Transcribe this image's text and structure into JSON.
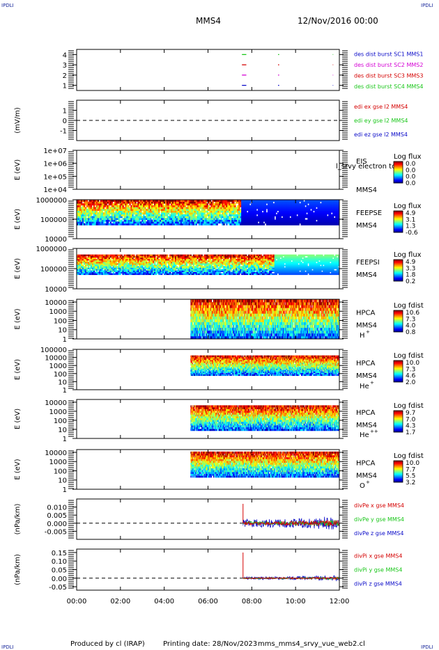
{
  "header": {
    "spacecraft": "MMS4",
    "date": "12/Nov/2016 00:00",
    "corner_label": "IPDLI"
  },
  "footer": {
    "produced_by": "Produced by cl (IRAP)",
    "printing_date": "Printing date: 28/Nov/2023",
    "script_name": "mms_mms4_srvy_vue_web2.cl"
  },
  "colors": {
    "blue": "#0a0ac8",
    "green": "#19c619",
    "red": "#d40000",
    "magenta": "#d400d4"
  },
  "chart_data": [
    {
      "type": "line",
      "id": "burst",
      "ylim": [
        0.5,
        4.5
      ],
      "yticks": [
        "1",
        "2",
        "3",
        "4"
      ],
      "ytick_values": [
        1,
        2,
        3,
        4
      ],
      "legend": [
        {
          "label": "des dist burst SC1 MMS1",
          "color": "blue"
        },
        {
          "label": "des dist burst SC2 MMS2",
          "color": "magenta"
        },
        {
          "label": "des dist burst SC3 MMS3",
          "color": "red"
        },
        {
          "label": "des dist burst SC4 MMS4",
          "color": "green"
        }
      ],
      "segments": [
        {
          "y": 4,
          "color": "green",
          "x": [
            [
              7.55,
              7.75
            ],
            [
              9.2,
              9.25
            ],
            [
              11.7,
              11.72
            ]
          ]
        },
        {
          "y": 3,
          "color": "red",
          "x": [
            [
              7.55,
              7.75
            ],
            [
              9.2,
              9.25
            ],
            [
              11.7,
              11.72
            ]
          ]
        },
        {
          "y": 2,
          "color": "magenta",
          "x": [
            [
              7.55,
              7.75
            ],
            [
              9.2,
              9.25
            ],
            [
              11.7,
              11.72
            ]
          ]
        },
        {
          "y": 1,
          "color": "blue",
          "x": [
            [
              7.55,
              7.75
            ],
            [
              9.2,
              9.25
            ],
            [
              11.7,
              11.72
            ]
          ]
        }
      ]
    },
    {
      "type": "line",
      "id": "edi",
      "ylabel": "(mV/m)",
      "ylim": [
        -2,
        2
      ],
      "yticks": [
        "-1",
        "0",
        "1"
      ],
      "ytick_values": [
        -1,
        0,
        1
      ],
      "zero_line": true,
      "legend": [
        {
          "label": "edi ex gse l2 MMS4",
          "color": "red"
        },
        {
          "label": "edi ey gse l2 MMS4",
          "color": "green"
        },
        {
          "label": "edi ez gse l2 MMS4",
          "color": "blue"
        }
      ]
    },
    {
      "type": "heatmap",
      "id": "eis",
      "ylabel": "E (eV)",
      "log": true,
      "ylim": [
        10000,
        10000000
      ],
      "yticks": [
        "1e+04",
        "1e+05",
        "1e+06",
        "1e+07"
      ],
      "ytick_values": [
        10000,
        100000,
        1000000,
        10000000
      ],
      "instrument": "EIS",
      "instrument_sub": "MMS4",
      "overlay_text": "l_srvy electron to",
      "colorbar_label": "Log flux",
      "colorbar_ticks": [
        "0.0",
        "0.0",
        "0.0",
        "0.0"
      ],
      "empty": true
    },
    {
      "type": "heatmap",
      "id": "feepse",
      "ylabel": "E (eV)",
      "log": true,
      "ylim": [
        10000,
        1000000
      ],
      "yticks": [
        "10000",
        "100000",
        "1000000"
      ],
      "ytick_values": [
        10000,
        100000,
        1000000
      ],
      "instrument": "FEEPSE",
      "instrument_sub": "MMS4",
      "colorbar_label": "Log flux",
      "colorbar_ticks": [
        "4.9",
        "3.1",
        "1.3",
        "-0.6"
      ],
      "data_start": 0.0,
      "data_bottom": 0.35,
      "data_top": 1.0
    },
    {
      "type": "heatmap",
      "id": "feepsi",
      "ylabel": "E (eV)",
      "log": true,
      "ylim": [
        10000,
        1000000
      ],
      "yticks": [
        "10000",
        "100000",
        "1000000"
      ],
      "ytick_values": [
        10000,
        100000,
        1000000
      ],
      "instrument": "FEEPSI",
      "instrument_sub": "MMS4",
      "colorbar_label": "Log flux",
      "colorbar_ticks": [
        "4.9",
        "3.3",
        "1.8",
        "0.2"
      ],
      "data_start": 0.0,
      "data_bottom": 0.35,
      "data_top": 0.85
    },
    {
      "type": "heatmap",
      "id": "hpca_h",
      "ylabel": "E (eV)",
      "log": true,
      "ylim": [
        1,
        20000
      ],
      "yticks": [
        "1",
        "10",
        "100",
        "1000",
        "10000"
      ],
      "ytick_values": [
        1,
        10,
        100,
        1000,
        10000
      ],
      "instrument": "HPCA",
      "instrument_sub": "MMS4",
      "species": "H",
      "charge": "+",
      "colorbar_label": "Log fdist",
      "colorbar_ticks": [
        "10.6",
        "7.3",
        "4.0",
        "0.8"
      ],
      "data_start": 5.2,
      "data_bottom": 0.0,
      "data_top": 1.0
    },
    {
      "type": "heatmap",
      "id": "hpca_he1",
      "ylabel": "E (eV)",
      "log": true,
      "ylim": [
        1,
        100000
      ],
      "yticks": [
        "1",
        "10",
        "100",
        "1000",
        "10000",
        "100000"
      ],
      "ytick_values": [
        1,
        10,
        100,
        1000,
        10000,
        100000
      ],
      "instrument": "HPCA",
      "instrument_sub": "MMS4",
      "species": "He",
      "charge": "+",
      "colorbar_label": "Log fdist",
      "colorbar_ticks": [
        "10.0",
        "7.3",
        "4.6",
        "2.0"
      ],
      "data_start": 5.2,
      "data_bottom": 0.35,
      "data_top": 0.85
    },
    {
      "type": "heatmap",
      "id": "hpca_he2",
      "ylabel": "E (eV)",
      "log": true,
      "ylim": [
        1,
        20000
      ],
      "yticks": [
        "1",
        "10",
        "100",
        "1000",
        "10000"
      ],
      "ytick_values": [
        1,
        10,
        100,
        1000,
        10000
      ],
      "instrument": "HPCA",
      "instrument_sub": "MMS4",
      "species": "He",
      "charge": "++",
      "colorbar_label": "Log fdist",
      "colorbar_ticks": [
        "9.7",
        "7.0",
        "4.3",
        "1.7"
      ],
      "data_start": 5.2,
      "data_bottom": 0.2,
      "data_top": 0.85
    },
    {
      "type": "heatmap",
      "id": "hpca_o",
      "ylabel": "E (eV)",
      "log": true,
      "ylim": [
        1,
        20000
      ],
      "yticks": [
        "1",
        "10",
        "100",
        "1000",
        "10000"
      ],
      "ytick_values": [
        1,
        10,
        100,
        1000,
        10000
      ],
      "instrument": "HPCA",
      "instrument_sub": "MMS4",
      "species": "O",
      "charge": "+",
      "colorbar_label": "Log fdist",
      "colorbar_ticks": [
        "10.0",
        "7.7",
        "5.5",
        "3.2"
      ],
      "data_start": 5.2,
      "data_bottom": 0.3,
      "data_top": 0.95
    },
    {
      "type": "line",
      "id": "divpe",
      "ylabel": "(nPa/km)",
      "ylim": [
        -0.01,
        0.015
      ],
      "yticks": [
        "-0.005",
        "0.000",
        "0.005",
        "0.010"
      ],
      "ytick_values": [
        -0.005,
        0,
        0.005,
        0.01
      ],
      "zero_line": true,
      "data_start": 7.6,
      "noise": 0.0035,
      "spike": 0.012,
      "legend": [
        {
          "label": "divPe x gse MMS4",
          "color": "red"
        },
        {
          "label": "divPe y gse MMS4",
          "color": "green"
        },
        {
          "label": "divPe z gse MMS4",
          "color": "blue"
        }
      ]
    },
    {
      "type": "line",
      "id": "divpi",
      "ylabel": "(nPa/km)",
      "ylim": [
        -0.07,
        0.17
      ],
      "yticks": [
        "-0.05",
        "0.00",
        "0.05",
        "0.10",
        "0.15"
      ],
      "ytick_values": [
        -0.05,
        0,
        0.05,
        0.1,
        0.15
      ],
      "zero_line": true,
      "data_start": 7.6,
      "noise": 0.012,
      "spike": 0.15,
      "legend": [
        {
          "label": "divPi x gse MMS4",
          "color": "red"
        },
        {
          "label": "divPi y gse MMS4",
          "color": "green"
        },
        {
          "label": "divPi z gse MMS4",
          "color": "blue"
        }
      ]
    }
  ],
  "xaxis": {
    "range": [
      0,
      12
    ],
    "ticks": [
      "00:00",
      "02:00",
      "04:00",
      "06:00",
      "08:00",
      "10:00",
      "12:00"
    ],
    "tick_values": [
      0,
      2,
      4,
      6,
      8,
      10,
      12
    ]
  }
}
